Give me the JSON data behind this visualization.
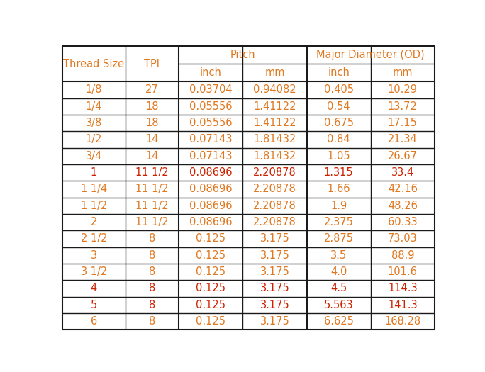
{
  "rows": [
    [
      "1/8",
      "27",
      "0.03704",
      "0.94082",
      "0.405",
      "10.29",
      "normal"
    ],
    [
      "1/4",
      "18",
      "0.05556",
      "1.41122",
      "0.54",
      "13.72",
      "normal"
    ],
    [
      "3/8",
      "18",
      "0.05556",
      "1.41122",
      "0.675",
      "17.15",
      "normal"
    ],
    [
      "1/2",
      "14",
      "0.07143",
      "1.81432",
      "0.84",
      "21.34",
      "normal"
    ],
    [
      "3/4",
      "14",
      "0.07143",
      "1.81432",
      "1.05",
      "26.67",
      "normal"
    ],
    [
      "1",
      "11 1/2",
      "0.08696",
      "2.20878",
      "1.315",
      "33.4",
      "red"
    ],
    [
      "1 1/4",
      "11 1/2",
      "0.08696",
      "2.20878",
      "1.66",
      "42.16",
      "normal"
    ],
    [
      "1 1/2",
      "11 1/2",
      "0.08696",
      "2.20878",
      "1.9",
      "48.26",
      "normal"
    ],
    [
      "2",
      "11 1/2",
      "0.08696",
      "2.20878",
      "2.375",
      "60.33",
      "normal"
    ],
    [
      "2 1/2",
      "8",
      "0.125",
      "3.175",
      "2.875",
      "73.03",
      "normal"
    ],
    [
      "3",
      "8",
      "0.125",
      "3.175",
      "3.5",
      "88.9",
      "normal"
    ],
    [
      "3 1/2",
      "8",
      "0.125",
      "3.175",
      "4.0",
      "101.6",
      "normal"
    ],
    [
      "4",
      "8",
      "0.125",
      "3.175",
      "4.5",
      "114.3",
      "red"
    ],
    [
      "5",
      "8",
      "0.125",
      "3.175",
      "5.563",
      "141.3",
      "red"
    ],
    [
      "6",
      "8",
      "0.125",
      "3.175",
      "6.625",
      "168.28",
      "normal"
    ]
  ],
  "header_color": "#E07820",
  "data_color": "#E07820",
  "red_color": "#CC2200",
  "line_color": "#1a1a1a",
  "bg_color": "#FFFFFF",
  "font_size_header": 10.5,
  "font_size_data": 10.5
}
